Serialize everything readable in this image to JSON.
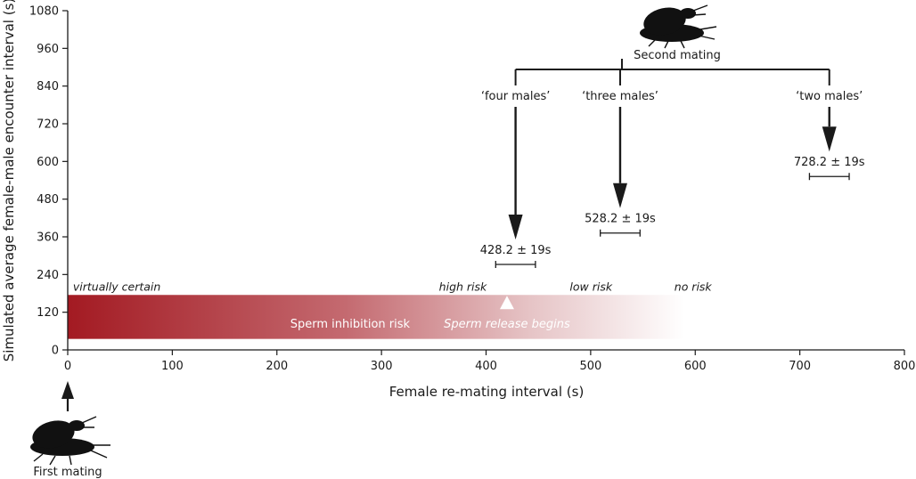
{
  "chart_data": {
    "type": "scatter",
    "xlabel": "Female re-mating interval (s)",
    "ylabel": "Simulated average female-male encounter interval (s)",
    "xlim": [
      0,
      800
    ],
    "ylim": [
      0,
      1080
    ],
    "xticks": [
      0,
      100,
      200,
      300,
      400,
      500,
      600,
      700,
      800
    ],
    "yticks": [
      0,
      120,
      240,
      360,
      480,
      600,
      720,
      840,
      960,
      1080
    ],
    "grid": false,
    "points": [
      {
        "name": "‘four males’",
        "x": 428.2,
        "y": 360,
        "se": 19,
        "label": "428.2 ± 19s"
      },
      {
        "name": "‘three males’",
        "x": 528.2,
        "y": 460,
        "se": 19,
        "label": "528.2 ± 19s"
      },
      {
        "name": "‘two males’",
        "x": 728.2,
        "y": 640,
        "se": 19,
        "label": "728.2 ± 19s"
      }
    ],
    "risk_band": {
      "label": "Sperm inhibition risk",
      "x_from": 0,
      "x_to": 590,
      "y_from": 35,
      "y_to": 175,
      "color_start": "#a31a22",
      "color_end": "#ffffff",
      "levels": [
        {
          "label": "virtually certain",
          "x": 5
        },
        {
          "label": "high risk",
          "x": 355
        },
        {
          "label": "low risk",
          "x": 480
        },
        {
          "label": "no risk",
          "x": 580
        }
      ]
    },
    "sperm_release": {
      "label": "Sperm release begins",
      "x": 420
    },
    "first_mating": {
      "label": "First mating",
      "x": 0
    },
    "second_mating": {
      "label": "Second mating"
    },
    "colors": {
      "axis": "#1a1a1a",
      "arrow": "#1a1a1a",
      "beetle": "#111111"
    }
  }
}
